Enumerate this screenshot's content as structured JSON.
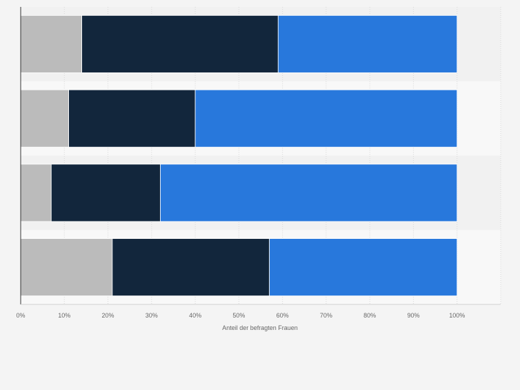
{
  "chart_data": {
    "type": "bar",
    "orientation": "horizontal",
    "stacked": true,
    "categories": [
      "",
      "",
      "",
      ""
    ],
    "series": [
      {
        "values": [
          14,
          11,
          7,
          21
        ],
        "color": "#bbbbbb"
      },
      {
        "values": [
          45,
          29,
          25,
          36
        ],
        "color": "#12263c"
      },
      {
        "values": [
          41,
          60,
          68,
          43
        ],
        "color": "#2878dc"
      }
    ],
    "xlabel": "Anteil der befragten Frauen",
    "ylabel": "",
    "xlim": [
      0,
      110
    ],
    "xticks": [
      "0%",
      "10%",
      "20%",
      "30%",
      "40%",
      "50%",
      "60%",
      "70%",
      "80%",
      "90%",
      "100%"
    ],
    "grid": true,
    "legend": "none"
  }
}
